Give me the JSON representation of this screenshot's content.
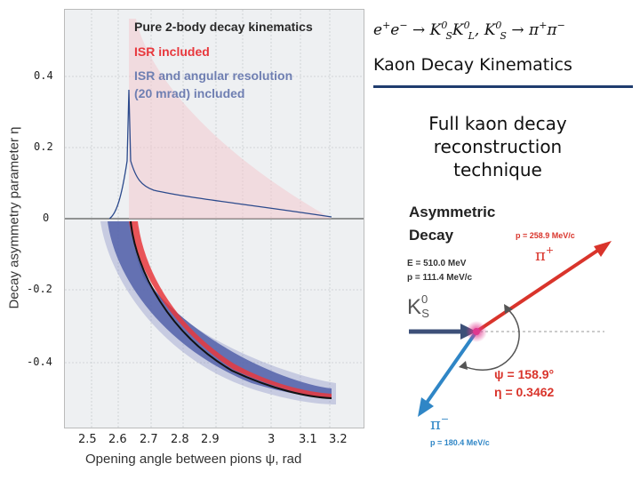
{
  "formula": {
    "e1": "e",
    "e1_sup": "+",
    "e2": "e",
    "e2_sup": "−",
    "arrow": " → ",
    "k1": "K",
    "k1_sup": "0",
    "k1_sub": "S",
    "k2": "K",
    "k2_sup": "0",
    "k2_sub": "L",
    "comma": ", ",
    "k3": "K",
    "k3_sup": "0",
    "k3_sub": "S",
    "arrow2": " → ",
    "pi1": "π",
    "pi1_sup": "+",
    "pi2": "π",
    "pi2_sup": "−"
  },
  "slide_title": "Kaon Decay Kinematics",
  "subtitle": {
    "line1": "Full kaon decay",
    "line2": "reconstruction",
    "line3": "technique"
  },
  "plot": {
    "legend": [
      {
        "label": "Pure 2-body decay kinematics",
        "color": "#2a2a2a"
      },
      {
        "label": "ISR included",
        "color": "#e8383d"
      },
      {
        "label": "ISR and angular resolution",
        "color": "#6f7fb2"
      },
      {
        "label": "(20 mrad) included",
        "color": "#6f7fb2"
      }
    ],
    "y_label": "Decay asymmetry parameter η",
    "x_label": "Opening angle between pions ψ, rad",
    "y_ticks": [
      "0.4",
      "0.2",
      "0",
      "-0.2",
      "-0.4"
    ],
    "x_ticks": [
      "2.5",
      "2.6",
      "2.7",
      "2.8",
      "2.9",
      "3",
      "3.1",
      "3.2"
    ]
  },
  "diagram": {
    "title_line1": "Asymmetric",
    "title_line2": "Decay",
    "energy": "E = 510.0 MeV",
    "momentum_k": "p = 111.4 MeV/c",
    "k_label": "K",
    "k_sup": "0",
    "k_sub": "S",
    "pi_plus_label": "π",
    "pi_plus_sup": "+",
    "pi_plus_momentum": "p = 258.9 MeV/c",
    "pi_minus_label": "π",
    "pi_minus_sup": "−",
    "pi_minus_momentum": "p = 180.4 MeV/c",
    "psi_value": "ψ = 158.9°",
    "eta_value": "η = 0.3462",
    "colors": {
      "red": "#d9342b",
      "blue": "#2f86c6",
      "kaon": "#3d5078",
      "magenta": "#e0388f"
    }
  }
}
